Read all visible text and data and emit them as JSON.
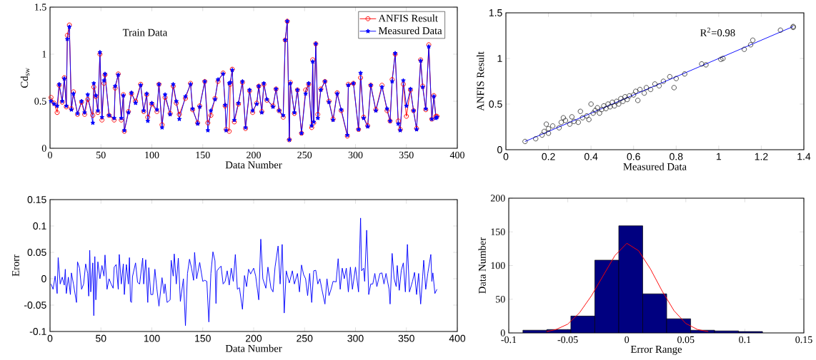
{
  "chart_data": [
    {
      "type": "line",
      "annotations": [
        "Train Data"
      ],
      "xlabel": "Data Number",
      "ylabel": "Cd$_{sw}$",
      "legend": "top right",
      "xlim": [
        0,
        400
      ],
      "xticks": [
        0,
        50,
        100,
        150,
        200,
        250,
        300,
        350,
        400
      ],
      "ylim": [
        0,
        1.5
      ],
      "yticks": [
        0,
        0.5,
        1,
        1.5
      ],
      "x": [
        1,
        4,
        7,
        9,
        12,
        14,
        16,
        17,
        19,
        21,
        23,
        27,
        31,
        34,
        37,
        42,
        43,
        45,
        47,
        49,
        51,
        53,
        54,
        58,
        63,
        64,
        67,
        70,
        72,
        73,
        77,
        80,
        84,
        89,
        92,
        95,
        96,
        100,
        105,
        107,
        110,
        113,
        118,
        121,
        124,
        127,
        133,
        138,
        140,
        145,
        147,
        152,
        155,
        158,
        162,
        165,
        170,
        172,
        173,
        176,
        177,
        179,
        181,
        185,
        189,
        192,
        196,
        199,
        203,
        205,
        208,
        210,
        213,
        219,
        222,
        225,
        229,
        231,
        233,
        235,
        236,
        240,
        243,
        247,
        251,
        254,
        257,
        258,
        259,
        261,
        263,
        266,
        270,
        274,
        278,
        282,
        286,
        292,
        293,
        298,
        303,
        305,
        308,
        312,
        315,
        320,
        326,
        331,
        334,
        336,
        339,
        342,
        344,
        347,
        350,
        354,
        357,
        360,
        364,
        366,
        369,
        372,
        375,
        377,
        379,
        380
      ],
      "series": [
        {
          "name": "ANFIS Result",
          "color": "#ff0000",
          "marker": "circle",
          "values": [
            0.54,
            0.48,
            0.38,
            0.67,
            0.49,
            0.75,
            0.44,
            1.2,
            1.31,
            0.42,
            0.6,
            0.36,
            0.49,
            0.36,
            0.52,
            0.35,
            0.65,
            0.55,
            0.38,
            1.0,
            0.3,
            0.69,
            0.78,
            0.35,
            0.3,
            0.64,
            0.79,
            0.3,
            0.57,
            0.18,
            0.39,
            0.58,
            0.5,
            0.68,
            0.39,
            0.57,
            0.33,
            0.47,
            0.39,
            0.68,
            0.25,
            0.54,
            0.37,
            0.66,
            0.48,
            0.36,
            0.53,
            0.69,
            0.41,
            0.27,
            0.45,
            0.71,
            0.27,
            0.35,
            0.53,
            0.71,
            0.8,
            0.45,
            0.2,
            0.18,
            0.68,
            0.84,
            0.28,
            0.47,
            0.7,
            0.21,
            0.61,
            0.38,
            0.48,
            0.66,
            0.39,
            0.68,
            0.51,
            0.45,
            0.63,
            0.4,
            0.33,
            1.15,
            1.35,
            0.09,
            0.7,
            0.37,
            0.62,
            0.16,
            0.62,
            0.68,
            0.22,
            0.94,
            0.27,
            1.11,
            0.36,
            0.63,
            0.71,
            0.5,
            0.31,
            0.59,
            0.4,
            0.13,
            0.68,
            0.69,
            0.2,
            0.75,
            0.33,
            0.24,
            0.67,
            0.41,
            0.67,
            0.4,
            0.29,
            0.73,
            1.0,
            0.29,
            0.2,
            0.68,
            0.34,
            0.62,
            0.4,
            0.21,
            0.94,
            0.66,
            0.41,
            1.1,
            0.31,
            0.56,
            0.34,
            0.34
          ]
        },
        {
          "name": "Measured Data",
          "color": "#0000ff",
          "marker": "star",
          "values": [
            0.5,
            0.47,
            0.45,
            0.68,
            0.5,
            0.74,
            0.45,
            1.16,
            1.29,
            0.41,
            0.58,
            0.37,
            0.5,
            0.38,
            0.57,
            0.27,
            0.69,
            0.56,
            0.4,
            1.02,
            0.33,
            0.72,
            0.79,
            0.35,
            0.32,
            0.66,
            0.78,
            0.32,
            0.56,
            0.19,
            0.38,
            0.59,
            0.48,
            0.67,
            0.4,
            0.58,
            0.29,
            0.48,
            0.41,
            0.68,
            0.22,
            0.57,
            0.36,
            0.68,
            0.5,
            0.31,
            0.55,
            0.68,
            0.42,
            0.26,
            0.44,
            0.71,
            0.19,
            0.4,
            0.52,
            0.73,
            0.79,
            0.46,
            0.19,
            0.69,
            0.7,
            0.83,
            0.3,
            0.48,
            0.71,
            0.22,
            0.62,
            0.4,
            0.47,
            0.66,
            0.38,
            0.69,
            0.52,
            0.44,
            0.63,
            0.4,
            0.35,
            1.15,
            1.35,
            0.09,
            0.69,
            0.38,
            0.62,
            0.16,
            0.58,
            0.69,
            0.24,
            0.92,
            0.28,
            1.11,
            0.32,
            0.62,
            0.71,
            0.49,
            0.3,
            0.58,
            0.41,
            0.14,
            0.67,
            0.69,
            0.2,
            0.8,
            0.32,
            0.23,
            0.67,
            0.4,
            0.65,
            0.42,
            0.29,
            0.71,
            1.01,
            0.26,
            0.19,
            0.72,
            0.45,
            0.63,
            0.4,
            0.2,
            0.93,
            0.65,
            0.42,
            1.08,
            0.31,
            0.55,
            0.32,
            0.33
          ]
        }
      ]
    },
    {
      "type": "scatter",
      "annotations": [
        "R$^{2}$=0.98"
      ],
      "xlabel": "Measured Data",
      "ylabel": "ANFIS Result",
      "xlim": [
        0,
        1.4
      ],
      "xticks": [
        0,
        0.2,
        0.4,
        0.6,
        0.8,
        1,
        1.2,
        1.4
      ],
      "ylim": [
        0,
        1.5
      ],
      "yticks": [
        0,
        0.5,
        1,
        1.5
      ],
      "series": [
        {
          "color": "#000000",
          "marker": "circle",
          "x": [
            0.09,
            0.14,
            0.17,
            0.18,
            0.19,
            0.2,
            0.2,
            0.22,
            0.25,
            0.26,
            0.27,
            0.28,
            0.3,
            0.31,
            0.32,
            0.34,
            0.35,
            0.36,
            0.38,
            0.39,
            0.4,
            0.41,
            0.42,
            0.43,
            0.44,
            0.45,
            0.46,
            0.47,
            0.48,
            0.49,
            0.5,
            0.51,
            0.52,
            0.53,
            0.54,
            0.55,
            0.56,
            0.57,
            0.58,
            0.6,
            0.61,
            0.62,
            0.63,
            0.65,
            0.66,
            0.68,
            0.7,
            0.72,
            0.74,
            0.77,
            0.79,
            0.8,
            0.84,
            0.92,
            0.94,
            1.01,
            1.02,
            1.12,
            1.15,
            1.16,
            1.29,
            1.35,
            1.35
          ],
          "values": [
            0.09,
            0.12,
            0.16,
            0.2,
            0.28,
            0.18,
            0.23,
            0.26,
            0.24,
            0.3,
            0.35,
            0.32,
            0.28,
            0.36,
            0.31,
            0.3,
            0.42,
            0.35,
            0.37,
            0.33,
            0.5,
            0.4,
            0.43,
            0.46,
            0.4,
            0.44,
            0.48,
            0.45,
            0.5,
            0.47,
            0.52,
            0.48,
            0.53,
            0.5,
            0.56,
            0.53,
            0.58,
            0.55,
            0.59,
            0.6,
            0.64,
            0.54,
            0.66,
            0.62,
            0.68,
            0.66,
            0.72,
            0.7,
            0.75,
            0.8,
            0.68,
            0.78,
            0.83,
            0.94,
            0.93,
            0.99,
            1.0,
            1.1,
            1.15,
            1.2,
            1.31,
            1.35,
            1.34
          ]
        },
        {
          "type": "line",
          "color": "#0000ff",
          "marker": "none",
          "x": [
            0.09,
            1.35
          ],
          "values": [
            0.09,
            1.35
          ]
        }
      ]
    },
    {
      "type": "line",
      "xlabel": "Data Number",
      "ylabel": "Erorr",
      "xlim": [
        0,
        400
      ],
      "xticks": [
        0,
        50,
        100,
        150,
        200,
        250,
        300,
        350,
        400
      ],
      "ylim": [
        -0.1,
        0.15
      ],
      "yticks": [
        -0.1,
        -0.05,
        0,
        0.05,
        0.1,
        0.15
      ],
      "series": [
        {
          "color": "#0000ff",
          "marker": "none",
          "x": [
            1,
            3,
            5,
            7,
            8,
            10,
            12,
            14,
            15,
            16,
            18,
            20,
            21,
            23,
            26,
            27,
            29,
            31,
            33,
            35,
            37,
            38,
            39,
            40,
            42,
            43,
            44,
            45,
            47,
            49,
            51,
            53,
            54,
            56,
            58,
            60,
            62,
            63,
            65,
            67,
            68,
            70,
            72,
            73,
            75,
            77,
            78,
            79,
            80,
            81,
            84,
            86,
            88,
            91,
            92,
            94,
            96,
            97,
            99,
            101,
            103,
            105,
            107,
            110,
            112,
            113,
            115,
            118,
            119,
            121,
            122,
            124,
            126,
            127,
            128,
            131,
            133,
            135,
            137,
            139,
            141,
            142,
            144,
            147,
            150,
            152,
            154,
            156,
            158,
            160,
            162,
            163,
            164,
            166,
            168,
            170,
            172,
            174,
            176,
            178,
            180,
            182,
            184,
            186,
            189,
            191,
            193,
            195,
            197,
            200,
            202,
            205,
            207,
            209,
            212,
            214,
            217,
            219,
            221,
            224,
            226,
            228,
            230,
            232,
            235,
            238,
            240,
            243,
            245,
            247,
            249,
            251,
            253,
            255,
            257,
            259,
            261,
            263,
            265,
            267,
            270,
            272,
            274,
            276,
            278,
            281,
            283,
            285,
            287,
            289,
            291,
            293,
            295,
            297,
            300,
            303,
            305,
            306,
            308,
            309,
            311,
            313,
            315,
            317,
            319,
            321,
            324,
            326,
            328,
            330,
            333,
            334,
            336,
            338,
            340,
            341,
            343,
            345,
            347,
            349,
            351,
            353,
            356,
            358,
            360,
            362,
            364,
            366,
            367,
            369,
            371,
            374,
            375,
            376,
            378,
            380
          ],
          "values": [
            -0.01,
            -0.02,
            0.005,
            -0.028,
            0.04,
            -0.01,
            0.003,
            -0.012,
            0.018,
            -0.028,
            0.003,
            -0.03,
            0.011,
            -0.01,
            -0.045,
            0.032,
            0.02,
            -0.02,
            -0.01,
            0.028,
            0.01,
            -0.033,
            0.054,
            -0.025,
            0.03,
            -0.07,
            0.042,
            -0.04,
            0.032,
            0.0,
            0.025,
            0.005,
            0.045,
            -0.02,
            0.0,
            -0.01,
            -0.018,
            0.022,
            0.027,
            -0.02,
            0.046,
            -0.01,
            0.028,
            -0.03,
            0.027,
            -0.01,
            0.04,
            -0.043,
            -0.045,
            0.004,
            0.03,
            -0.007,
            -0.01,
            0.039,
            -0.01,
            0.036,
            -0.045,
            0.021,
            -0.03,
            -0.03,
            0.018,
            -0.02,
            -0.052,
            0.002,
            -0.028,
            -0.01,
            -0.045,
            -0.04,
            0.035,
            0.005,
            0.047,
            -0.01,
            0.039,
            0.0,
            -0.043,
            0.0,
            -0.089,
            0.01,
            0.037,
            0.02,
            -0.003,
            0.05,
            0.0,
            0.031,
            -0.005,
            -0.003,
            -0.005,
            -0.082,
            0.01,
            0.051,
            0.034,
            -0.047,
            0.015,
            0.02,
            0.024,
            -0.01,
            -0.005,
            0.015,
            -0.012,
            0.02,
            -0.005,
            0.046,
            -0.02,
            -0.017,
            -0.058,
            0.006,
            -0.015,
            0.018,
            0.009,
            0.02,
            0.005,
            -0.04,
            0.075,
            0.0,
            -0.018,
            0.022,
            -0.018,
            -0.025,
            0.022,
            0.062,
            -0.01,
            0.065,
            -0.065,
            0.015,
            -0.008,
            0.015,
            -0.01,
            0.01,
            -0.025,
            0.026,
            0.008,
            0.0,
            -0.032,
            0.01,
            -0.045,
            0.015,
            0.016,
            -0.01,
            0.0,
            -0.02,
            -0.048,
            0.0,
            -0.032,
            -0.02,
            -0.005,
            -0.006,
            0.038,
            -0.02,
            0.02,
            0.0,
            0.02,
            -0.025,
            0.022,
            -0.02,
            0.022,
            -0.025,
            0.115,
            0.015,
            0.02,
            -0.005,
            0.092,
            -0.03,
            -0.01,
            -0.01,
            0.01,
            -0.015,
            0.01,
            0.011,
            -0.01,
            0.01,
            -0.02,
            -0.048,
            0.048,
            0.0,
            -0.015,
            0.025,
            -0.022,
            0.016,
            0.03,
            -0.025,
            0.065,
            -0.025,
            -0.005,
            0.012,
            -0.03,
            0.01,
            -0.048,
            0.005,
            0.035,
            -0.02,
            0.01,
            0.046,
            -0.005,
            0.011,
            -0.028,
            -0.02
          ]
        }
      ]
    },
    {
      "type": "histogram",
      "xlabel": "Error Range",
      "ylabel": "Data Number",
      "xlim": [
        -0.1,
        0.15
      ],
      "xticks": [
        -0.1,
        -0.05,
        0,
        0.05,
        0.1,
        0.15
      ],
      "ylim": [
        0,
        200
      ],
      "yticks": [
        0,
        50,
        100,
        150,
        200
      ],
      "series": [
        {
          "type": "histogram",
          "color": "#000080",
          "bins": [
            -0.088,
            -0.0677,
            -0.0474,
            -0.0271,
            -0.0068,
            0.0135,
            0.0338,
            0.0541,
            0.0744,
            0.0947,
            0.115
          ],
          "values": [
            4,
            5,
            25,
            108,
            159,
            58,
            21,
            4,
            3,
            2
          ]
        },
        {
          "type": "line",
          "color": "#ff0000",
          "marker": "none",
          "x": [
            -0.068,
            -0.06,
            -0.05,
            -0.04,
            -0.03,
            -0.02,
            -0.01,
            0,
            0.01,
            0.02,
            0.03,
            0.04,
            0.05,
            0.06,
            0.069
          ],
          "values": [
            2,
            5,
            13,
            30,
            55,
            85,
            115,
            133,
            122,
            95,
            62,
            33,
            14,
            5,
            2
          ]
        }
      ]
    }
  ]
}
